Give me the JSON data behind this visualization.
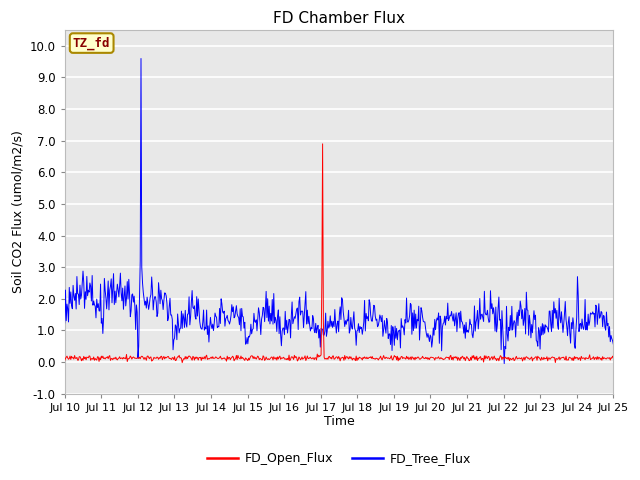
{
  "title": "FD Chamber Flux",
  "xlabel": "Time",
  "ylabel": "Soil CO2 Flux (umol/m2/s)",
  "ylim": [
    -1.0,
    10.5
  ],
  "yticks": [
    -1.0,
    0.0,
    1.0,
    2.0,
    3.0,
    4.0,
    5.0,
    6.0,
    7.0,
    8.0,
    9.0,
    10.0
  ],
  "xtick_labels": [
    "Jul 10",
    "Jul 11",
    "Jul 12",
    "Jul 13",
    "Jul 14",
    "Jul 15",
    "Jul 16",
    "Jul 17",
    "Jul 18",
    "Jul 19",
    "Jul 20",
    "Jul 21",
    "Jul 22",
    "Jul 23",
    "Jul 24",
    "Jul 25"
  ],
  "tree_flux_color": "#0000FF",
  "open_flux_color": "#FF0000",
  "fig_bg_color": "#FFFFFF",
  "plot_bg_color": "#E8E8E8",
  "grid_color": "#FFFFFF",
  "annotation_text": "TZ_fd",
  "annotation_bg": "#FFFFCC",
  "annotation_border": "#AA8800",
  "annotation_text_color": "#880000",
  "legend_labels": [
    "FD_Open_Flux",
    "FD_Tree_Flux"
  ],
  "title_fontsize": 11,
  "axis_fontsize": 9,
  "tick_fontsize": 8.5
}
